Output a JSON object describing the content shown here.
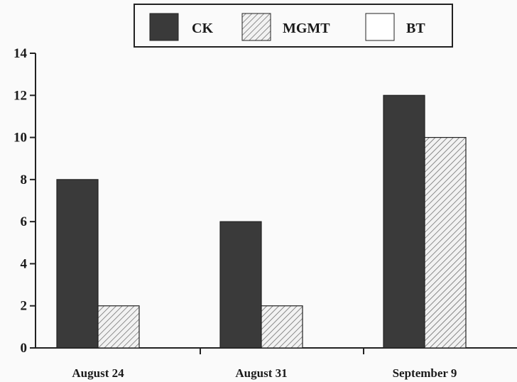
{
  "chart_data": {
    "type": "bar",
    "title": "",
    "xlabel": "",
    "ylabel": "",
    "categories": [
      "August 24",
      "August 31",
      "September 9"
    ],
    "series": [
      {
        "name": "CK",
        "values": [
          8,
          6,
          12
        ]
      },
      {
        "name": "MGMT",
        "values": [
          2,
          2,
          10
        ]
      },
      {
        "name": "BT",
        "values": [
          0,
          0,
          0
        ]
      }
    ],
    "ylim": [
      0,
      14
    ],
    "yticks": [
      "0",
      "2",
      "4",
      "6",
      "8",
      "10",
      "12",
      "14"
    ],
    "grid": false,
    "legend_position": "top-center",
    "colors": {
      "CK": "#3a3a3a",
      "MGMT": "hatched",
      "BT": "#ffffff",
      "axis": "#222222"
    }
  }
}
